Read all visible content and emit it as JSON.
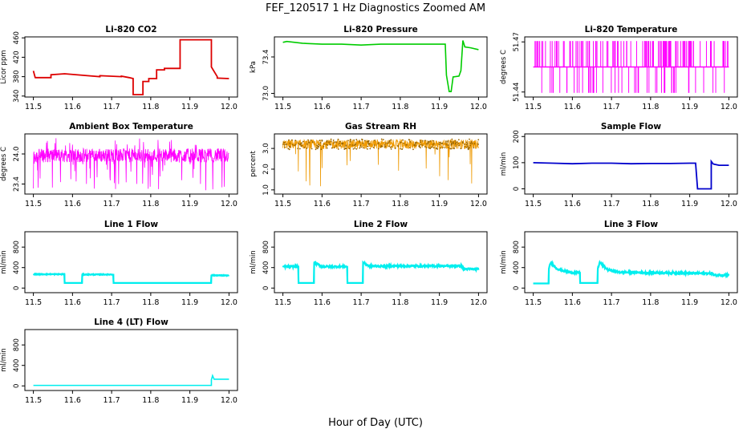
{
  "figure": {
    "title": "FEF_120517  1 Hz Diagnostics Zoomed AM",
    "xlabel": "Hour of Day (UTC)"
  },
  "chart_data": [
    {
      "id": "co2",
      "type": "line",
      "title": "Li-820 CO2",
      "ylabel": "Licor ppm",
      "color": "#dd0000",
      "xlim": [
        11.5,
        12.0
      ],
      "ylim": [
        338,
        462
      ],
      "xticks": [
        "11.5",
        "11.6",
        "11.7",
        "11.8",
        "11.9",
        "12.0"
      ],
      "yticks": [
        340,
        380,
        420,
        460
      ],
      "ytick_labels": [
        "340",
        "380",
        "420",
        "460"
      ],
      "series": [
        {
          "x": [
            11.5,
            11.505,
            11.505,
            11.545,
            11.545,
            11.58,
            11.58,
            11.67,
            11.67,
            11.725,
            11.725,
            11.745,
            11.755,
            11.755,
            11.78,
            11.78,
            11.795,
            11.795,
            11.815,
            11.815,
            11.835,
            11.835,
            11.875,
            11.875,
            11.955,
            11.955,
            11.97,
            11.97,
            12.0
          ],
          "y": [
            392,
            377,
            378,
            378,
            384,
            386,
            386,
            380,
            382,
            380,
            381,
            378,
            376,
            343,
            343,
            370,
            370,
            376,
            376,
            394,
            394,
            397,
            397,
            456,
            456,
            400,
            380,
            377,
            376
          ]
        }
      ]
    },
    {
      "id": "pressure",
      "type": "line",
      "title": "Li-820 Pressure",
      "ylabel": "kPa",
      "color": "#00cc00",
      "xlim": [
        11.5,
        12.0
      ],
      "ylim": [
        72.96,
        73.62
      ],
      "xticks": [
        "11.5",
        "11.6",
        "11.7",
        "11.8",
        "11.9",
        "12.0"
      ],
      "yticks": [
        73.0,
        73.4
      ],
      "ytick_labels": [
        "73.0",
        "73.4"
      ],
      "series": [
        {
          "x": [
            11.5,
            11.51,
            11.55,
            11.6,
            11.65,
            11.7,
            11.75,
            11.8,
            11.85,
            11.9,
            11.915,
            11.918,
            11.925,
            11.93,
            11.935,
            11.95,
            11.955,
            11.96,
            11.965,
            11.98,
            12.0
          ],
          "y": [
            73.56,
            73.57,
            73.55,
            73.54,
            73.54,
            73.53,
            73.54,
            73.54,
            73.54,
            73.54,
            73.54,
            73.2,
            73.02,
            73.02,
            73.18,
            73.19,
            73.25,
            73.58,
            73.51,
            73.5,
            73.48
          ]
        }
      ]
    },
    {
      "id": "licortemp",
      "type": "line",
      "title": "Li-820 Temperature",
      "ylabel": "degrees C",
      "color": "#ff00ff",
      "xlim": [
        11.5,
        12.0
      ],
      "ylim": [
        51.437,
        51.473
      ],
      "xticks": [
        "11.5",
        "11.6",
        "11.7",
        "11.8",
        "11.9",
        "12.0"
      ],
      "yticks": [
        51.44,
        51.47
      ],
      "ytick_labels": [
        "51.44",
        "51.47"
      ],
      "series": [
        {
          "x": [
            11.5,
            11.51,
            11.52,
            11.55,
            11.6,
            11.65,
            11.69,
            11.7,
            11.75,
            11.8,
            11.85,
            11.9,
            11.95,
            12.0
          ],
          "y": [
            51.455,
            51.455,
            51.455,
            51.455,
            51.455,
            51.455,
            51.455,
            51.455,
            51.455,
            51.455,
            51.455,
            51.455,
            51.455,
            51.455
          ]
        }
      ]
    },
    {
      "id": "ambient",
      "type": "line",
      "title": "Ambient Box Temperature",
      "ylabel": "degrees C",
      "color": "#ff00ff",
      "xlim": [
        11.5,
        12.0
      ],
      "ylim": [
        23.2,
        24.4
      ],
      "xticks": [
        "11.5",
        "11.6",
        "11.7",
        "11.8",
        "11.9",
        "12.0"
      ],
      "yticks": [
        23.4,
        24.0
      ],
      "ytick_labels": [
        "23.4",
        "24.0"
      ],
      "series": [
        {
          "x": [
            11.5,
            12.0
          ],
          "y": [
            23.97,
            23.97
          ]
        }
      ]
    },
    {
      "id": "rh",
      "type": "line",
      "title": "Gas Stream RH",
      "ylabel": "percent",
      "color": "#ee9900",
      "xlim": [
        11.5,
        12.0
      ],
      "ylim": [
        0.8,
        3.7
      ],
      "xticks": [
        "11.5",
        "11.6",
        "11.7",
        "11.8",
        "11.9",
        "12.0"
      ],
      "yticks": [
        1.0,
        2.0,
        3.0
      ],
      "ytick_labels": [
        "1.0",
        "2.0",
        "3.0"
      ],
      "series": [
        {
          "x": [
            11.5,
            12.0
          ],
          "y": [
            3.2,
            3.2
          ]
        }
      ]
    },
    {
      "id": "sampleflow",
      "type": "line",
      "title": "Sample Flow",
      "ylabel": "ml/min",
      "color": "#0000cc",
      "xlim": [
        11.5,
        12.0
      ],
      "ylim": [
        -20,
        210
      ],
      "xticks": [
        "11.5",
        "11.6",
        "11.7",
        "11.8",
        "11.9",
        "12.0"
      ],
      "yticks": [
        0,
        100,
        200
      ],
      "ytick_labels": [
        "0",
        "100",
        "200"
      ],
      "series": [
        {
          "x": [
            11.5,
            11.55,
            11.6,
            11.65,
            11.7,
            11.75,
            11.8,
            11.85,
            11.9,
            11.915,
            11.92,
            11.955,
            11.955,
            11.96,
            11.975,
            12.0
          ],
          "y": [
            100,
            98,
            96,
            98,
            98,
            96,
            97,
            97,
            98,
            98,
            0,
            0,
            105,
            95,
            90,
            90
          ]
        }
      ]
    },
    {
      "id": "line1",
      "type": "line",
      "title": "Line 1 Flow",
      "ylabel": "ml/min",
      "color": "#00eeee",
      "xlim": [
        11.5,
        12.0
      ],
      "ylim": [
        -90,
        1100
      ],
      "xticks": [
        "11.5",
        "11.6",
        "11.7",
        "11.8",
        "11.9",
        "12.0"
      ],
      "yticks": [
        0,
        400,
        800
      ],
      "ytick_labels": [
        "0",
        "400",
        "800"
      ],
      "series": [
        {
          "x": [
            11.5,
            11.58,
            11.58,
            11.625,
            11.625,
            11.705,
            11.705,
            11.955,
            11.955,
            12.0
          ],
          "y": [
            270,
            270,
            100,
            100,
            265,
            265,
            100,
            100,
            250,
            245
          ]
        }
      ]
    },
    {
      "id": "line2",
      "type": "line",
      "title": "Line 2 Flow",
      "ylabel": "ml/min",
      "color": "#00eeee",
      "xlim": [
        11.5,
        12.0
      ],
      "ylim": [
        -90,
        1100
      ],
      "xticks": [
        "11.5",
        "11.6",
        "11.7",
        "11.8",
        "11.9",
        "12.0"
      ],
      "yticks": [
        0,
        400,
        800
      ],
      "ytick_labels": [
        "0",
        "400",
        "800"
      ],
      "series": [
        {
          "x": [
            11.5,
            11.54,
            11.54,
            11.58,
            11.58,
            11.6,
            11.665,
            11.665,
            11.705,
            11.705,
            11.72,
            11.8,
            11.96,
            11.96,
            12.0
          ],
          "y": [
            420,
            420,
            100,
            100,
            500,
            420,
            420,
            100,
            100,
            500,
            430,
            430,
            430,
            370,
            370
          ]
        }
      ]
    },
    {
      "id": "line3",
      "type": "line",
      "title": "Line 3 Flow",
      "ylabel": "ml/min",
      "color": "#00eeee",
      "xlim": [
        11.5,
        12.0
      ],
      "ylim": [
        -90,
        1100
      ],
      "xticks": [
        "11.5",
        "11.6",
        "11.7",
        "11.8",
        "11.9",
        "12.0"
      ],
      "yticks": [
        0,
        400,
        800
      ],
      "ytick_labels": [
        "0",
        "400",
        "800"
      ],
      "series": [
        {
          "x": [
            11.5,
            11.54,
            11.54,
            11.545,
            11.56,
            11.58,
            11.6,
            11.62,
            11.62,
            11.665,
            11.665,
            11.67,
            11.69,
            11.72,
            11.8,
            11.9,
            11.96,
            11.96,
            12.0
          ],
          "y": [
            90,
            90,
            380,
            500,
            380,
            330,
            300,
            300,
            100,
            100,
            380,
            500,
            360,
            310,
            300,
            290,
            285,
            250,
            255
          ]
        }
      ]
    },
    {
      "id": "line4",
      "type": "line",
      "title": "Line 4 (LT) Flow",
      "ylabel": "ml/min",
      "color": "#00eeee",
      "xlim": [
        11.5,
        12.0
      ],
      "ylim": [
        -90,
        1100
      ],
      "xticks": [
        "11.5",
        "11.6",
        "11.7",
        "11.8",
        "11.9",
        "12.0"
      ],
      "yticks": [
        0,
        400,
        800
      ],
      "ytick_labels": [
        "0",
        "400",
        "800"
      ],
      "series": [
        {
          "x": [
            11.5,
            11.955,
            11.955,
            11.958,
            11.962,
            12.0
          ],
          "y": [
            10,
            10,
            120,
            200,
            130,
            130
          ]
        }
      ]
    }
  ]
}
